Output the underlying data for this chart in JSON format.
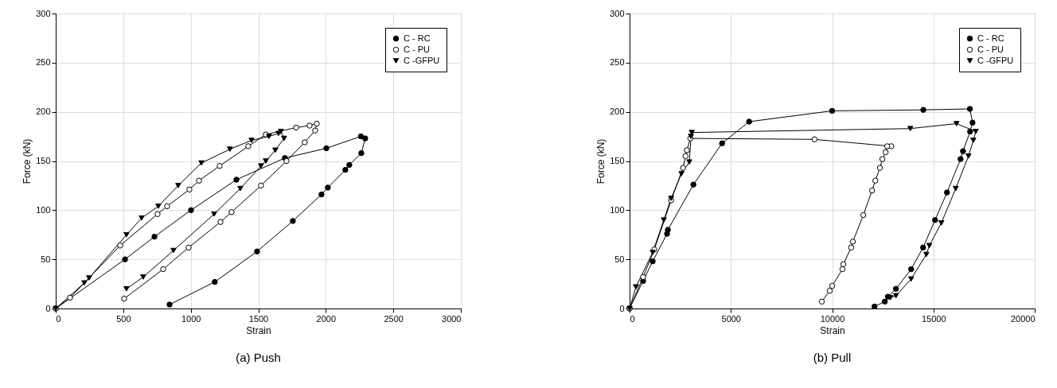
{
  "chart_data": [
    {
      "type": "line",
      "title": "(a) Push",
      "xlabel": "Strain",
      "ylabel": "Force (kN)",
      "xlim": [
        0,
        3000
      ],
      "xticks": [
        0,
        500,
        1000,
        1500,
        2000,
        2500,
        3000
      ],
      "ylim": [
        0,
        300
      ],
      "yticks": [
        0,
        50,
        100,
        150,
        200,
        250,
        300
      ],
      "grid": true,
      "legend": "top right",
      "series": [
        {
          "name": "C - RC",
          "color": "#000000",
          "marker": "circle",
          "x": [
            0,
            513,
            731,
            1002,
            1338,
            1697,
            2004,
            2260,
            2292,
            2263,
            2174,
            2145,
            2015,
            1968,
            1756,
            1491,
            1178,
            843
          ],
          "values": [
            0,
            50,
            73,
            100,
            131,
            153,
            163,
            175,
            173,
            158,
            146,
            141,
            123,
            116,
            89,
            58,
            27,
            4
          ]
        },
        {
          "name": "C - PU",
          "color": "#ffffff",
          "marker": "circle",
          "x": [
            0,
            106,
            477,
            754,
            825,
            990,
            1061,
            1214,
            1426,
            1556,
            1780,
            1880,
            1933,
            1921,
            1844,
            1709,
            1520,
            1302,
            1220,
            984,
            796,
            507
          ],
          "values": [
            0,
            11,
            64,
            96,
            104,
            121,
            130,
            145,
            165,
            177,
            184,
            186,
            188,
            181,
            169,
            150,
            125,
            98,
            88,
            62,
            40,
            10
          ]
        },
        {
          "name": "C -GFPU",
          "color": "#000000",
          "marker": "triangle",
          "x": [
            0,
            212,
            247,
            524,
            636,
            760,
            907,
            1079,
            1290,
            1450,
            1579,
            1650,
            1667,
            1691,
            1626,
            1556,
            1520,
            1367,
            1173,
            872,
            648,
            524
          ],
          "values": [
            0,
            26,
            31,
            75,
            92,
            104,
            125,
            148,
            162,
            171,
            175,
            178,
            180,
            173,
            161,
            150,
            145,
            122,
            96,
            59,
            32,
            20
          ]
        }
      ]
    },
    {
      "type": "line",
      "title": "(b) Pull",
      "xlabel": "Strain",
      "ylabel": "Force (kN)",
      "xlim": [
        0,
        20000
      ],
      "xticks": [
        0,
        5000,
        10000,
        15000,
        20000
      ],
      "ylim": [
        0,
        300
      ],
      "yticks": [
        0,
        50,
        100,
        150,
        200,
        250,
        300
      ],
      "grid": true,
      "legend": "top right",
      "series": [
        {
          "name": "C - RC",
          "color": "#000000",
          "marker": "circle",
          "x": [
            0,
            669,
            1142,
            1850,
            1890,
            3150,
            4567,
            5900,
            10000,
            14500,
            16800,
            16930,
            16810,
            16460,
            16340,
            15670,
            15080,
            14490,
            13900,
            13150,
            12750,
            12600,
            12090
          ],
          "values": [
            0,
            28,
            48,
            76,
            80,
            126,
            168,
            190,
            201,
            202,
            203,
            189,
            180,
            160,
            152,
            118,
            90,
            62,
            40,
            20,
            12,
            7,
            2
          ]
        },
        {
          "name": "C - PU",
          "color": "#ffffff",
          "marker": "circle",
          "x": [
            0,
            670,
            1220,
            2050,
            2640,
            2760,
            2830,
            3000,
            9130,
            12920,
            12720,
            12640,
            12480,
            12360,
            12130,
            11970,
            11540,
            11020,
            10940,
            10550,
            10510,
            10000,
            9880,
            9490
          ],
          "values": [
            0,
            32,
            60,
            110,
            143,
            155,
            161,
            173,
            172,
            165,
            165,
            159,
            152,
            143,
            130,
            120,
            95,
            68,
            62,
            45,
            40,
            23,
            18,
            7
          ]
        },
        {
          "name": "C -GFPU",
          "color": "#000000",
          "marker": "triangle",
          "x": [
            0,
            315,
            1140,
            1690,
            2050,
            2560,
            2950,
            3030,
            3070,
            13860,
            16140,
            17090,
            16970,
            16730,
            16100,
            15390,
            14800,
            14650,
            13900,
            13150,
            12870
          ],
          "values": [
            0,
            22,
            57,
            90,
            112,
            137,
            149,
            175,
            179,
            183,
            188,
            180,
            171,
            155,
            122,
            87,
            64,
            55,
            30,
            13,
            11
          ]
        }
      ]
    }
  ]
}
